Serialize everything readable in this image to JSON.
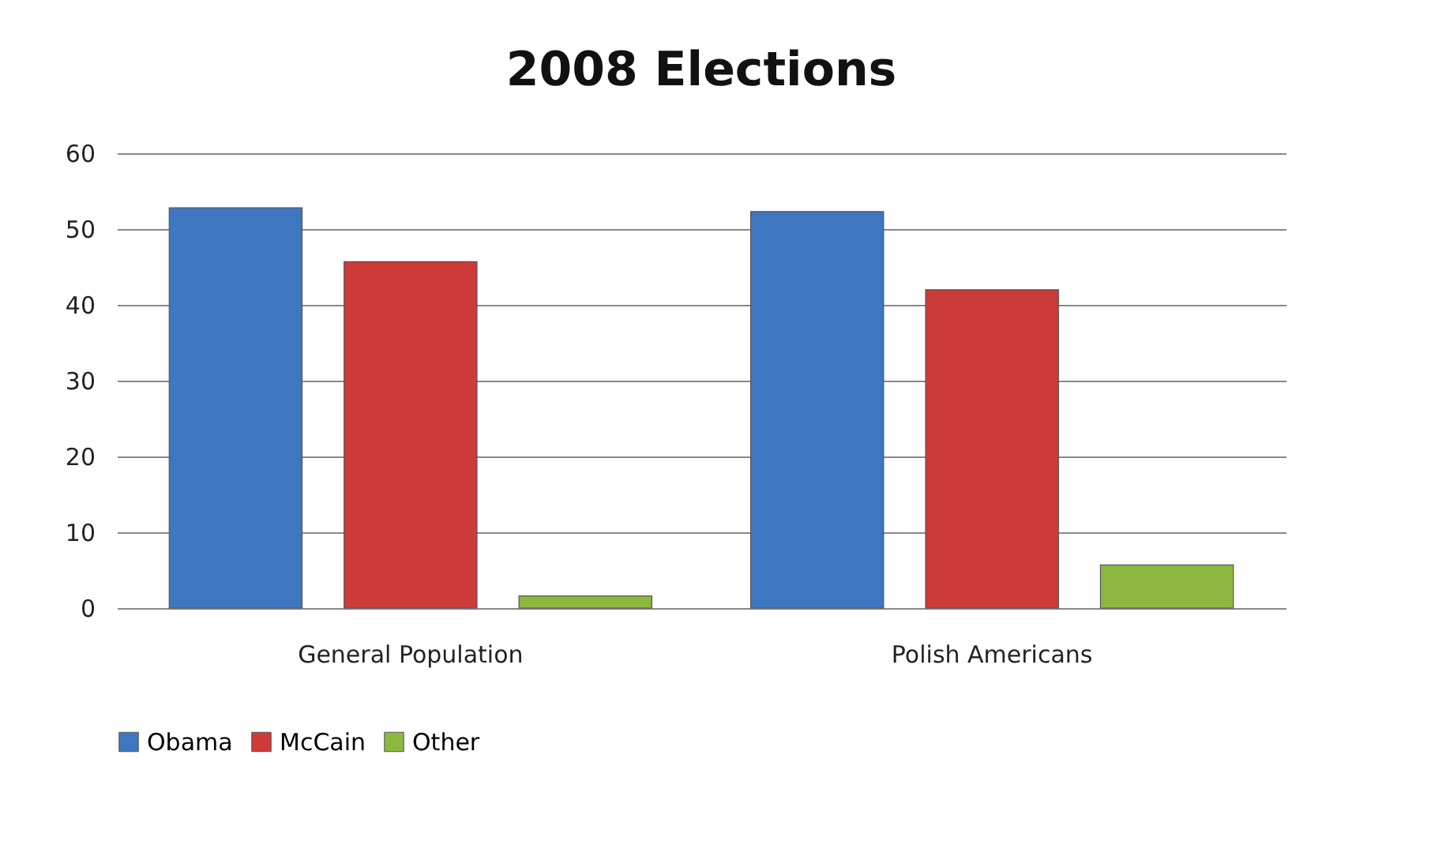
{
  "chart_data": {
    "type": "bar",
    "title": "2008 Elections",
    "categories": [
      "General Population",
      "Polish Americans"
    ],
    "series": [
      {
        "name": "Obama",
        "color": "#3f76c0",
        "values": [
          52.8,
          52.3
        ]
      },
      {
        "name": "McCain",
        "color": "#cc3b38",
        "values": [
          45.7,
          42.0
        ]
      },
      {
        "name": "Other",
        "color": "#8db83f",
        "values": [
          1.6,
          5.7
        ]
      }
    ],
    "ylim": [
      0,
      60
    ],
    "yticks": [
      0,
      10,
      20,
      30,
      40,
      50,
      60
    ],
    "grid": "y",
    "legend": "bottom"
  }
}
